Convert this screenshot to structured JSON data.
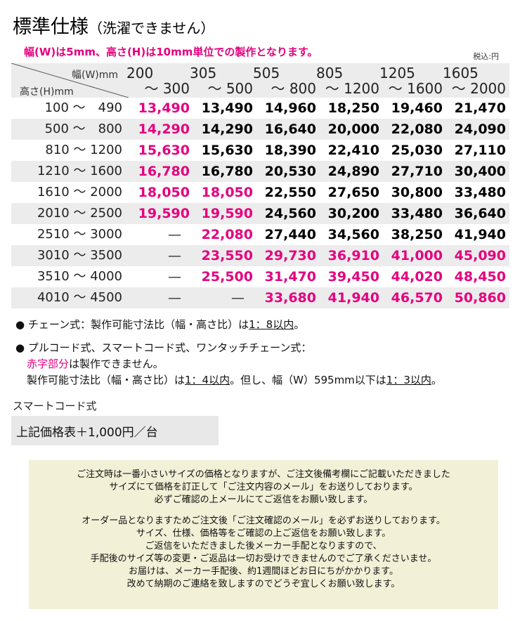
{
  "title": "標準仕様",
  "title_sub": "（洗濯できません）",
  "subtitle": "幅(W)は5mm、高さ(H)は10mm単位での製作となります。",
  "tax_note": "税込:円",
  "table": {
    "width_header": "幅(W)mm",
    "height_header": "高さ(H)mm",
    "columns": [
      {
        "from": "200",
        "to": "～ 300"
      },
      {
        "from": "305",
        "to": "～ 500"
      },
      {
        "from": "505",
        "to": "～ 800"
      },
      {
        "from": "805",
        "to": "～ 1200"
      },
      {
        "from": "1205",
        "to": "～ 1600"
      },
      {
        "from": "1605",
        "to": "～ 2000"
      }
    ],
    "rows": [
      {
        "label": "100 ～　490",
        "cells": [
          "13,490",
          "13,490",
          "14,960",
          "18,250",
          "19,460",
          "21,470"
        ],
        "red": [
          true,
          false,
          false,
          false,
          false,
          false
        ]
      },
      {
        "label": "500 ～　800",
        "cells": [
          "14,290",
          "14,290",
          "16,640",
          "20,000",
          "22,080",
          "24,090"
        ],
        "red": [
          true,
          false,
          false,
          false,
          false,
          false
        ]
      },
      {
        "label": "810 ～ 1200",
        "cells": [
          "15,630",
          "15,630",
          "18,390",
          "22,410",
          "25,030",
          "27,110"
        ],
        "red": [
          true,
          false,
          false,
          false,
          false,
          false
        ]
      },
      {
        "label": "1210 ～ 1600",
        "cells": [
          "16,780",
          "16,780",
          "20,530",
          "24,890",
          "27,710",
          "30,400"
        ],
        "red": [
          true,
          false,
          false,
          false,
          false,
          false
        ]
      },
      {
        "label": "1610 ～ 2000",
        "cells": [
          "18,050",
          "18,050",
          "22,550",
          "27,650",
          "30,800",
          "33,480"
        ],
        "red": [
          true,
          true,
          false,
          false,
          false,
          false
        ]
      },
      {
        "label": "2010 ～ 2500",
        "cells": [
          "19,590",
          "19,590",
          "24,560",
          "30,200",
          "33,480",
          "36,640"
        ],
        "red": [
          true,
          true,
          false,
          false,
          false,
          false
        ]
      },
      {
        "label": "2510 ～ 3000",
        "cells": [
          "—",
          "22,080",
          "27,440",
          "34,560",
          "38,250",
          "41,940"
        ],
        "red": [
          false,
          true,
          false,
          false,
          false,
          false
        ]
      },
      {
        "label": "3010 ～ 3500",
        "cells": [
          "—",
          "23,550",
          "29,730",
          "36,910",
          "41,000",
          "45,090"
        ],
        "red": [
          false,
          true,
          true,
          true,
          true,
          true
        ]
      },
      {
        "label": "3510 ～ 4000",
        "cells": [
          "—",
          "25,500",
          "31,470",
          "39,450",
          "44,020",
          "48,450"
        ],
        "red": [
          false,
          true,
          true,
          true,
          true,
          true
        ]
      },
      {
        "label": "4010 ～ 4500",
        "cells": [
          "—",
          "—",
          "33,680",
          "41,940",
          "46,570",
          "50,860"
        ],
        "red": [
          false,
          false,
          true,
          true,
          true,
          true
        ]
      }
    ]
  },
  "notes": {
    "chain_text": "● チェーン式：製作可能寸法比（幅・高さ比）は",
    "chain_ratio": "1：8以内",
    "chain_end": "。",
    "pull_line": "● プルコード式、スマートコード式、ワンタッチチェーン式：",
    "red_part": "赤字部分",
    "red_part_rest": "は製作できません。",
    "pull_text": "製作可能寸法比（幅・高さ比）は",
    "pull_ratio": "1：4以内",
    "pull_mid": "。但し、幅（W）595mm以下は",
    "pull_ratio2": "1：3以内",
    "pull_end": "。"
  },
  "smart": {
    "title": "スマートコード式",
    "price": "上記価格表＋1,000円／台"
  },
  "notice_lines": [
    "ご注文時は一番小さいサイズの価格となりますが、ご注文後備考欄にご記載いただきました",
    "サイズにて価格を訂正して「ご注文内容のメール」をお送りしております。",
    "必ずご確認の上メールにてご返信をお願い致します。",
    "",
    "オーダー品となりますためご注文後「ご注文確認のメール」を必ずお送りしております。",
    "サイズ、仕様、価格等をご確認の上ご返信をお願い致します。",
    "ご返信をいただきました後メーカー手配となりますので、",
    "手配後のサイズ等の変更・ご返品は一切お受けできませんのでご了承くださいませ。",
    "お届けは、メーカー手配後、約1週間ほどお日にちがかかります。",
    "改めて納期のご連絡を致しますのでどうぞ宜しくお願い致します。"
  ],
  "colors": {
    "accent_red": "#e4007f",
    "table_shade": "#ececec",
    "notice_bg": "#f2f0d6"
  }
}
